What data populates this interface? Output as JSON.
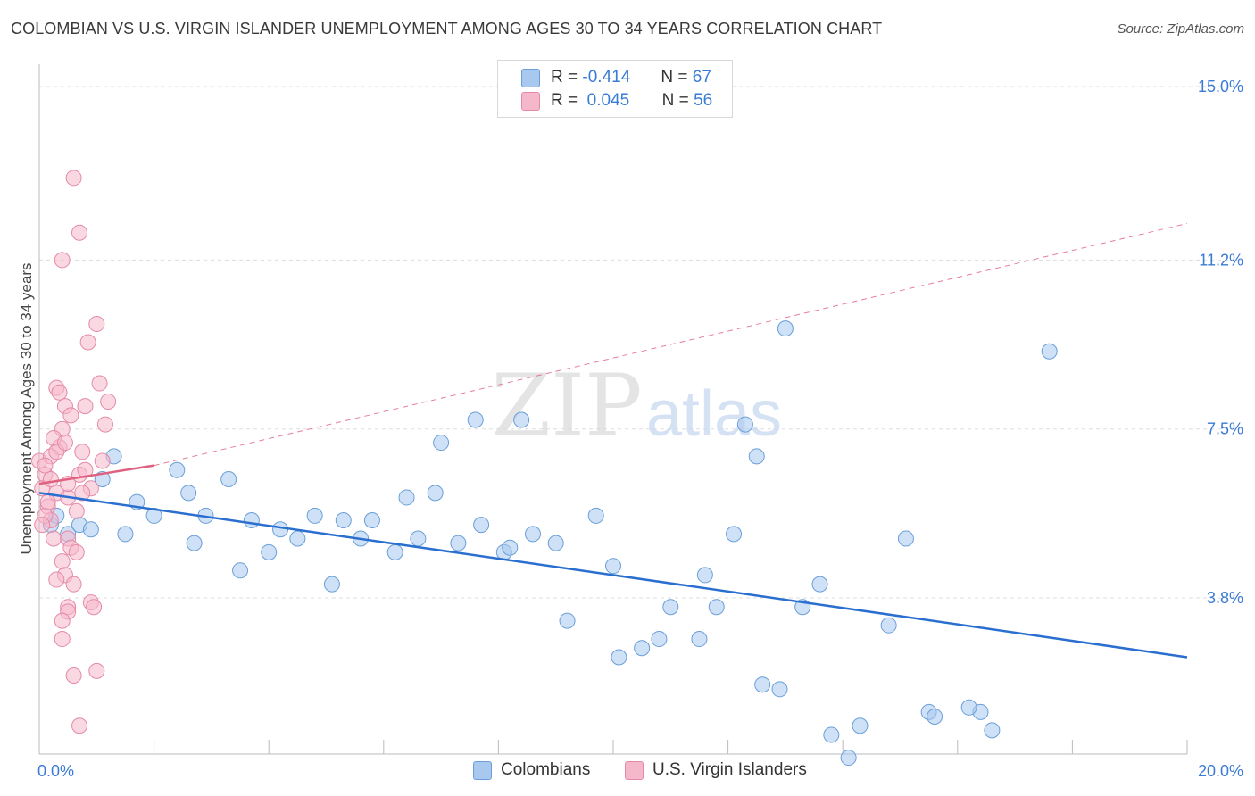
{
  "title": "COLOMBIAN VS U.S. VIRGIN ISLANDER UNEMPLOYMENT AMONG AGES 30 TO 34 YEARS CORRELATION CHART",
  "source": "Source: ZipAtlas.com",
  "watermark": {
    "zip": "ZIP",
    "atlas": "atlas"
  },
  "legend": {
    "r_label": "R =",
    "n_label": "N =",
    "series": [
      {
        "name": "Colombians",
        "r": "-0.414",
        "n": "67"
      },
      {
        "name": "U.S. Virgin Islanders",
        "r": "0.045",
        "n": "56"
      }
    ]
  },
  "colors": {
    "blue_fill": "#a8c8f0",
    "blue_stroke": "#6a9fd8",
    "blue_line": "#2a6fd0",
    "pink_fill": "#f5b8cb",
    "pink_stroke": "#e48aa8",
    "pink_line": "#e0607f",
    "tick_label": "#3a7bd5",
    "grid": "#dddddd"
  },
  "chart_data": {
    "type": "scatter",
    "title": "COLOMBIAN VS U.S. VIRGIN ISLANDER UNEMPLOYMENT AMONG AGES 30 TO 34 YEARS CORRELATION CHART",
    "xlabel": "",
    "ylabel": "Unemployment Among Ages 30 to 34 years",
    "xlim": [
      0,
      20
    ],
    "ylim": [
      0,
      15.5
    ],
    "x_tick_labels": [
      {
        "value": 0,
        "label": "0.0%"
      },
      {
        "value": 20,
        "label": "20.0%"
      }
    ],
    "y_ticks": [
      {
        "value": 3.8,
        "label": "3.8%"
      },
      {
        "value": 7.5,
        "label": "7.5%"
      },
      {
        "value": 11.2,
        "label": "11.2%"
      },
      {
        "value": 15.0,
        "label": "15.0%"
      }
    ],
    "series": [
      {
        "name": "Colombians",
        "points": [
          [
            0.2,
            5.4
          ],
          [
            0.3,
            5.6
          ],
          [
            0.7,
            5.4
          ],
          [
            1.1,
            6.4
          ],
          [
            1.7,
            5.9
          ],
          [
            2.4,
            6.6
          ],
          [
            2.9,
            5.6
          ],
          [
            3.7,
            5.5
          ],
          [
            0.9,
            5.3
          ],
          [
            1.5,
            5.2
          ],
          [
            2.0,
            5.6
          ],
          [
            2.6,
            6.1
          ],
          [
            3.3,
            6.4
          ],
          [
            4.2,
            5.3
          ],
          [
            4.8,
            5.6
          ],
          [
            5.3,
            5.5
          ],
          [
            5.8,
            5.5
          ],
          [
            6.4,
            6.0
          ],
          [
            0.5,
            5.2
          ],
          [
            1.3,
            6.9
          ],
          [
            2.7,
            5.0
          ],
          [
            3.5,
            4.4
          ],
          [
            4.0,
            4.8
          ],
          [
            4.5,
            5.1
          ],
          [
            5.1,
            4.1
          ],
          [
            5.6,
            5.1
          ],
          [
            6.2,
            4.8
          ],
          [
            6.6,
            5.1
          ],
          [
            6.9,
            6.1
          ],
          [
            7.3,
            5.0
          ],
          [
            7.7,
            5.4
          ],
          [
            8.1,
            4.8
          ],
          [
            8.2,
            4.9
          ],
          [
            8.6,
            5.2
          ],
          [
            8.4,
            7.7
          ],
          [
            9.7,
            5.6
          ],
          [
            9.2,
            3.3
          ],
          [
            10.1,
            2.5
          ],
          [
            10.5,
            2.7
          ],
          [
            10.8,
            2.9
          ],
          [
            11.0,
            3.6
          ],
          [
            11.6,
            4.3
          ],
          [
            11.8,
            3.6
          ],
          [
            12.1,
            5.2
          ],
          [
            12.6,
            1.9
          ],
          [
            12.9,
            1.8
          ],
          [
            13.3,
            3.6
          ],
          [
            13.6,
            4.1
          ],
          [
            13.8,
            0.8
          ],
          [
            14.1,
            0.3
          ],
          [
            14.3,
            1.0
          ],
          [
            14.8,
            3.2
          ],
          [
            15.1,
            5.1
          ],
          [
            15.5,
            1.3
          ],
          [
            15.6,
            1.2
          ],
          [
            7.0,
            7.2
          ],
          [
            7.6,
            7.7
          ],
          [
            9.0,
            5.0
          ],
          [
            10.0,
            4.5
          ],
          [
            11.5,
            2.9
          ],
          [
            12.5,
            6.9
          ],
          [
            12.3,
            7.6
          ],
          [
            13.0,
            9.7
          ],
          [
            17.6,
            9.2
          ],
          [
            16.4,
            1.3
          ],
          [
            16.2,
            1.4
          ],
          [
            16.6,
            0.9
          ]
        ]
      },
      {
        "name": "U.S. Virgin Islanders",
        "points": [
          [
            0.0,
            6.8
          ],
          [
            0.1,
            6.5
          ],
          [
            0.05,
            6.2
          ],
          [
            0.15,
            5.8
          ],
          [
            0.2,
            5.5
          ],
          [
            0.25,
            5.1
          ],
          [
            0.3,
            6.1
          ],
          [
            0.35,
            7.1
          ],
          [
            0.4,
            7.5
          ],
          [
            0.45,
            8.0
          ],
          [
            0.3,
            8.4
          ],
          [
            0.5,
            5.1
          ],
          [
            0.55,
            4.9
          ],
          [
            0.4,
            4.6
          ],
          [
            0.45,
            4.3
          ],
          [
            0.5,
            3.6
          ],
          [
            0.5,
            3.5
          ],
          [
            0.4,
            2.9
          ],
          [
            0.6,
            4.1
          ],
          [
            0.65,
            4.8
          ],
          [
            0.7,
            6.5
          ],
          [
            0.75,
            7.0
          ],
          [
            0.8,
            8.0
          ],
          [
            0.85,
            9.4
          ],
          [
            0.9,
            3.7
          ],
          [
            0.95,
            3.6
          ],
          [
            1.0,
            9.8
          ],
          [
            1.05,
            8.5
          ],
          [
            1.2,
            8.1
          ],
          [
            1.0,
            2.2
          ],
          [
            0.7,
            11.8
          ],
          [
            0.4,
            11.2
          ],
          [
            0.5,
            6.0
          ],
          [
            0.6,
            2.1
          ],
          [
            0.7,
            1.0
          ],
          [
            1.1,
            6.8
          ],
          [
            1.15,
            7.6
          ],
          [
            0.2,
            6.9
          ],
          [
            0.25,
            7.3
          ],
          [
            0.1,
            5.6
          ],
          [
            0.15,
            5.9
          ],
          [
            0.05,
            5.4
          ],
          [
            0.35,
            8.3
          ],
          [
            0.9,
            6.2
          ],
          [
            0.6,
            13.0
          ],
          [
            0.3,
            4.2
          ],
          [
            0.4,
            3.3
          ],
          [
            0.8,
            6.6
          ],
          [
            0.55,
            7.8
          ],
          [
            0.65,
            5.7
          ],
          [
            0.75,
            6.1
          ],
          [
            0.2,
            6.4
          ],
          [
            0.1,
            6.7
          ],
          [
            0.3,
            7.0
          ],
          [
            0.45,
            7.2
          ],
          [
            0.5,
            6.3
          ]
        ]
      }
    ],
    "trend_lines": [
      {
        "name": "Colombians",
        "x": [
          0,
          20
        ],
        "y": [
          6.1,
          2.5
        ],
        "style": "solid"
      },
      {
        "name": "U.S. Virgin Islanders",
        "x": [
          0,
          2.0
        ],
        "y": [
          6.3,
          6.7
        ],
        "style": "solid"
      },
      {
        "name": "U.S. Virgin Islanders",
        "x": [
          2.0,
          20
        ],
        "y": [
          6.7,
          12.0
        ],
        "style": "dashed"
      }
    ]
  }
}
